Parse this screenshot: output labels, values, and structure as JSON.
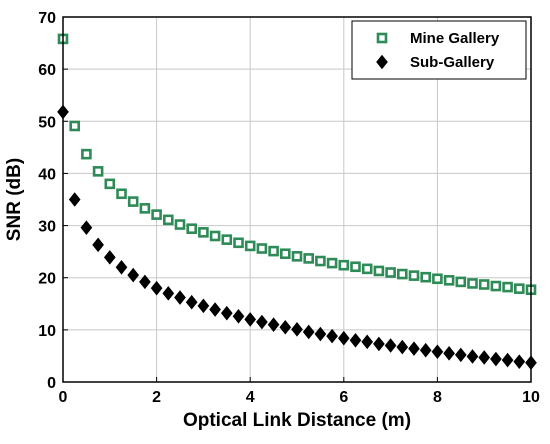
{
  "colors": {
    "mine": "#2e8b57",
    "sub": "#000000",
    "grid": "#c8c8c8",
    "frame": "#000000"
  },
  "chart_data": {
    "type": "scatter",
    "xlabel": "Optical Link Distance (m)",
    "ylabel": "SNR (dB)",
    "xlim": [
      0,
      10
    ],
    "ylim": [
      0,
      70
    ],
    "xticks": [
      "0",
      "2",
      "4",
      "6",
      "8",
      "10"
    ],
    "yticks": [
      "0",
      "10",
      "20",
      "30",
      "40",
      "50",
      "60",
      "70"
    ],
    "grid": true,
    "legend_position": "top-right",
    "x": [
      0.0,
      0.25,
      0.5,
      0.75,
      1.0,
      1.25,
      1.5,
      1.75,
      2.0,
      2.25,
      2.5,
      2.75,
      3.0,
      3.25,
      3.5,
      3.75,
      4.0,
      4.25,
      4.5,
      4.75,
      5.0,
      5.25,
      5.5,
      5.75,
      6.0,
      6.25,
      6.5,
      6.75,
      7.0,
      7.25,
      7.5,
      7.75,
      8.0,
      8.25,
      8.5,
      8.75,
      9.0,
      9.25,
      9.5,
      9.75,
      10.0
    ],
    "series": [
      {
        "name": "Mine Gallery",
        "marker": "square",
        "color": "#2e8b57",
        "values": [
          65.8,
          49.1,
          43.7,
          40.4,
          38.0,
          36.1,
          34.6,
          33.3,
          32.1,
          31.1,
          30.2,
          29.4,
          28.7,
          28.0,
          27.3,
          26.7,
          26.1,
          25.6,
          25.1,
          24.6,
          24.1,
          23.7,
          23.2,
          22.8,
          22.4,
          22.1,
          21.7,
          21.3,
          21.0,
          20.7,
          20.4,
          20.1,
          19.8,
          19.5,
          19.2,
          18.9,
          18.7,
          18.4,
          18.2,
          17.9,
          17.7
        ]
      },
      {
        "name": "Sub-Gallery",
        "marker": "diamond",
        "color": "#000000",
        "values": [
          51.8,
          35.0,
          29.6,
          26.3,
          23.9,
          22.0,
          20.5,
          19.2,
          18.0,
          17.0,
          16.2,
          15.3,
          14.6,
          13.9,
          13.2,
          12.6,
          12.0,
          11.5,
          11.0,
          10.5,
          10.1,
          9.6,
          9.2,
          8.8,
          8.4,
          8.0,
          7.7,
          7.3,
          7.0,
          6.7,
          6.4,
          6.1,
          5.8,
          5.5,
          5.2,
          4.9,
          4.7,
          4.4,
          4.2,
          3.9,
          3.7
        ]
      }
    ]
  }
}
